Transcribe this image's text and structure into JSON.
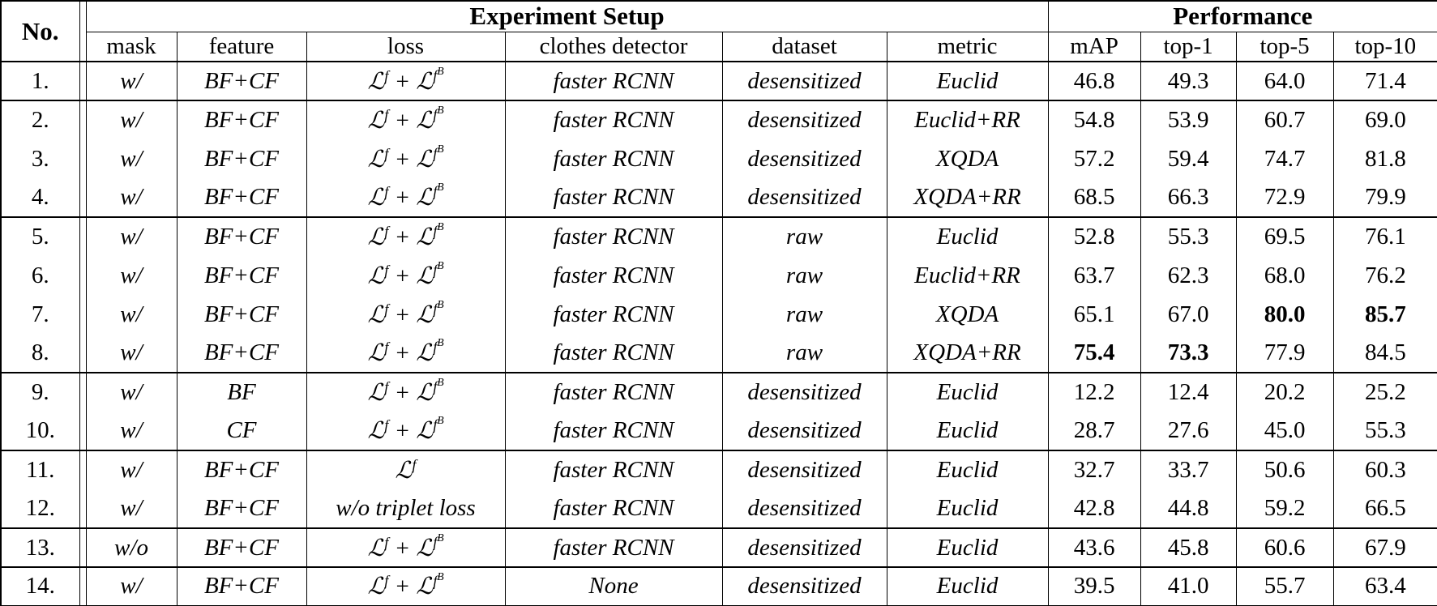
{
  "colors": {
    "background": "#ffffff",
    "text": "#000000",
    "border": "#000000"
  },
  "table": {
    "title_groups": {
      "no": "No.",
      "setup": "Experiment Setup",
      "performance": "Performance"
    },
    "columns": {
      "mask": "mask",
      "feature": "feature",
      "loss": "loss",
      "detector": "clothes detector",
      "dataset": "dataset",
      "metric": "metric",
      "map": "mAP",
      "top1": "top-1",
      "top5": "top-5",
      "top10": "top-10"
    },
    "rows": [
      {
        "no": "1.",
        "mask": "w/",
        "feature": "BF+CF",
        "loss": "ℒ^{f} + ℒ^{f^{B}}",
        "detector": "faster RCNN",
        "dataset": "desensitized",
        "metric": "Euclid",
        "map": "46.8",
        "top1": "49.3",
        "top5": "64.0",
        "top10": "71.4",
        "bold": [],
        "group_end": true
      },
      {
        "no": "2.",
        "mask": "w/",
        "feature": "BF+CF",
        "loss": "ℒ^{f} + ℒ^{f^{B}}",
        "detector": "faster RCNN",
        "dataset": "desensitized",
        "metric": "Euclid+RR",
        "map": "54.8",
        "top1": "53.9",
        "top5": "60.7",
        "top10": "69.0",
        "bold": [],
        "group_end": false
      },
      {
        "no": "3.",
        "mask": "w/",
        "feature": "BF+CF",
        "loss": "ℒ^{f} + ℒ^{f^{B}}",
        "detector": "faster RCNN",
        "dataset": "desensitized",
        "metric": "XQDA",
        "map": "57.2",
        "top1": "59.4",
        "top5": "74.7",
        "top10": "81.8",
        "bold": [],
        "group_end": false
      },
      {
        "no": "4.",
        "mask": "w/",
        "feature": "BF+CF",
        "loss": "ℒ^{f} + ℒ^{f^{B}}",
        "detector": "faster RCNN",
        "dataset": "desensitized",
        "metric": "XQDA+RR",
        "map": "68.5",
        "top1": "66.3",
        "top5": "72.9",
        "top10": "79.9",
        "bold": [],
        "group_end": true
      },
      {
        "no": "5.",
        "mask": "w/",
        "feature": "BF+CF",
        "loss": "ℒ^{f} + ℒ^{f^{B}}",
        "detector": "faster RCNN",
        "dataset": "raw",
        "metric": "Euclid",
        "map": "52.8",
        "top1": "55.3",
        "top5": "69.5",
        "top10": "76.1",
        "bold": [],
        "group_end": false
      },
      {
        "no": "6.",
        "mask": "w/",
        "feature": "BF+CF",
        "loss": "ℒ^{f} + ℒ^{f^{B}}",
        "detector": "faster RCNN",
        "dataset": "raw",
        "metric": "Euclid+RR",
        "map": "63.7",
        "top1": "62.3",
        "top5": "68.0",
        "top10": "76.2",
        "bold": [],
        "group_end": false
      },
      {
        "no": "7.",
        "mask": "w/",
        "feature": "BF+CF",
        "loss": "ℒ^{f} + ℒ^{f^{B}}",
        "detector": "faster RCNN",
        "dataset": "raw",
        "metric": "XQDA",
        "map": "65.1",
        "top1": "67.0",
        "top5": "80.0",
        "top10": "85.7",
        "bold": [
          "top5",
          "top10"
        ],
        "group_end": false
      },
      {
        "no": "8.",
        "mask": "w/",
        "feature": "BF+CF",
        "loss": "ℒ^{f} + ℒ^{f^{B}}",
        "detector": "faster RCNN",
        "dataset": "raw",
        "metric": "XQDA+RR",
        "map": "75.4",
        "top1": "73.3",
        "top5": "77.9",
        "top10": "84.5",
        "bold": [
          "map",
          "top1"
        ],
        "group_end": true
      },
      {
        "no": "9.",
        "mask": "w/",
        "feature": "BF",
        "loss": "ℒ^{f} + ℒ^{f^{B}}",
        "detector": "faster RCNN",
        "dataset": "desensitized",
        "metric": "Euclid",
        "map": "12.2",
        "top1": "12.4",
        "top5": "20.2",
        "top10": "25.2",
        "bold": [],
        "group_end": false
      },
      {
        "no": "10.",
        "mask": "w/",
        "feature": "CF",
        "loss": "ℒ^{f} + ℒ^{f^{B}}",
        "detector": "faster RCNN",
        "dataset": "desensitized",
        "metric": "Euclid",
        "map": "28.7",
        "top1": "27.6",
        "top5": "45.0",
        "top10": "55.3",
        "bold": [],
        "group_end": true
      },
      {
        "no": "11.",
        "mask": "w/",
        "feature": "BF+CF",
        "loss": "ℒ^{f}",
        "detector": "faster RCNN",
        "dataset": "desensitized",
        "metric": "Euclid",
        "map": "32.7",
        "top1": "33.7",
        "top5": "50.6",
        "top10": "60.3",
        "bold": [],
        "group_end": false
      },
      {
        "no": "12.",
        "mask": "w/",
        "feature": "BF+CF",
        "loss": "w/o triplet loss",
        "detector": "faster RCNN",
        "dataset": "desensitized",
        "metric": "Euclid",
        "map": "42.8",
        "top1": "44.8",
        "top5": "59.2",
        "top10": "66.5",
        "bold": [],
        "group_end": true
      },
      {
        "no": "13.",
        "mask": "w/o",
        "feature": "BF+CF",
        "loss": "ℒ^{f} + ℒ^{f^{B}}",
        "detector": "faster RCNN",
        "dataset": "desensitized",
        "metric": "Euclid",
        "map": "43.6",
        "top1": "45.8",
        "top5": "60.6",
        "top10": "67.9",
        "bold": [],
        "group_end": true
      },
      {
        "no": "14.",
        "mask": "w/",
        "feature": "BF+CF",
        "loss": "ℒ^{f} + ℒ^{f^{B}}",
        "detector": "None",
        "dataset": "desensitized",
        "metric": "Euclid",
        "map": "39.5",
        "top1": "41.0",
        "top5": "55.7",
        "top10": "63.4",
        "bold": [],
        "group_end": false
      }
    ]
  }
}
